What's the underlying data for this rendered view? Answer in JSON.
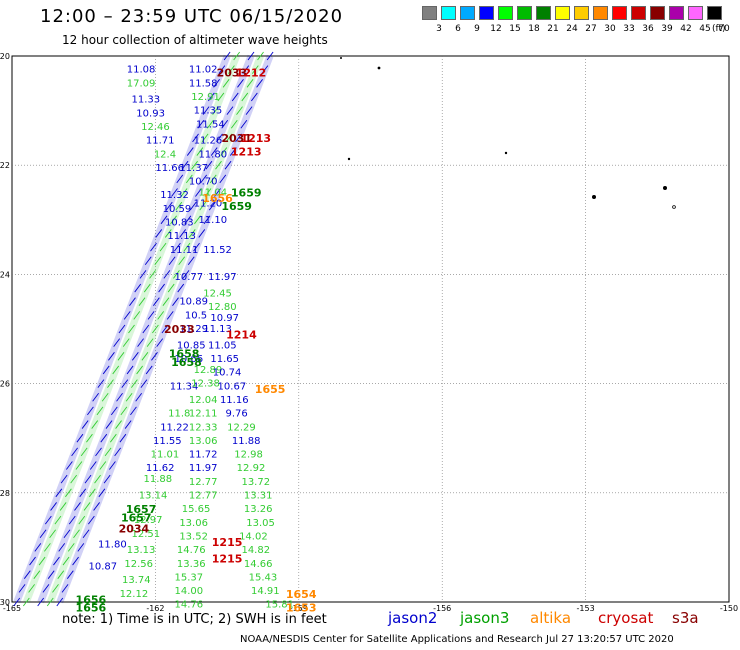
{
  "title": "12:00 – 23:59 UTC 06/15/2020",
  "subtitle": "12 hour collection of altimeter wave heights",
  "legend": {
    "unit": "(ft)",
    "bins": [
      {
        "label": "3",
        "color": "#808080"
      },
      {
        "label": "6",
        "color": "#00ffff"
      },
      {
        "label": "9",
        "color": "#00aaff"
      },
      {
        "label": "12",
        "color": "#0000ff"
      },
      {
        "label": "15",
        "color": "#00ff00"
      },
      {
        "label": "18",
        "color": "#00bb00"
      },
      {
        "label": "21",
        "color": "#008000"
      },
      {
        "label": "24",
        "color": "#ffff00"
      },
      {
        "label": "27",
        "color": "#ffcc00"
      },
      {
        "label": "30",
        "color": "#ff8800"
      },
      {
        "label": "33",
        "color": "#ff0000"
      },
      {
        "label": "36",
        "color": "#cc0000"
      },
      {
        "label": "39",
        "color": "#880000"
      },
      {
        "label": "42",
        "color": "#aa00aa"
      },
      {
        "label": "45",
        "color": "#ff66ff"
      },
      {
        "label": "70",
        "color": "#000000"
      }
    ]
  },
  "axes": {
    "lat_labels": [
      "-20",
      "-22",
      "-24",
      "-26",
      "-28",
      "-30"
    ],
    "lon_labels": [
      "-165",
      "-162",
      "-159",
      "-156",
      "-153",
      "-150"
    ]
  },
  "satellites": {
    "jason2": {
      "label": "jason2",
      "color": "#0000cc"
    },
    "jason3": {
      "label": "jason3",
      "color": "#00a000"
    },
    "altika": {
      "label": "altika",
      "color": "#ff8800"
    },
    "cryosat": {
      "label": "cryosat",
      "color": "#cc0000"
    },
    "s3a": {
      "label": "s3a",
      "color": "#880000"
    }
  },
  "note": "note:  1) Time is in UTC; 2) SWH is in feet",
  "credit": "NOAA/NESDIS Center for Satellite Applications and Research     Jul 27 13:20:57 UTC 2020",
  "observations": [
    {
      "lat": -20.25,
      "lon": -162.3,
      "v": "11.08",
      "c": "#0000cc"
    },
    {
      "lat": -20.5,
      "lon": -162.3,
      "v": "17.09",
      "c": "#33cc33"
    },
    {
      "lat": -20.8,
      "lon": -162.2,
      "v": "11.33",
      "c": "#0000cc"
    },
    {
      "lat": -21.05,
      "lon": -162.1,
      "v": "10.93",
      "c": "#0000cc"
    },
    {
      "lat": -21.3,
      "lon": -162.0,
      "v": "12.46",
      "c": "#33cc33"
    },
    {
      "lat": -21.55,
      "lon": -161.9,
      "v": "11.71",
      "c": "#0000cc"
    },
    {
      "lat": -21.8,
      "lon": -161.8,
      "v": "12.4",
      "c": "#33cc33"
    },
    {
      "lat": -22.05,
      "lon": -161.7,
      "v": "11.66",
      "c": "#0000cc"
    },
    {
      "lat": -22.55,
      "lon": -161.6,
      "v": "11.32",
      "c": "#0000cc"
    },
    {
      "lat": -22.8,
      "lon": -161.55,
      "v": "10.59",
      "c": "#0000cc"
    },
    {
      "lat": -23.05,
      "lon": -161.5,
      "v": "10.83",
      "c": "#0000cc"
    },
    {
      "lat": -23.3,
      "lon": -161.45,
      "v": "11.13",
      "c": "#0000cc"
    },
    {
      "lat": -23.55,
      "lon": -161.4,
      "v": "11.11",
      "c": "#0000cc"
    },
    {
      "lat": -24.05,
      "lon": -161.3,
      "v": "10.77",
      "c": "#0000cc"
    },
    {
      "lat": -24.5,
      "lon": -161.2,
      "v": "10.89",
      "c": "#0000cc"
    },
    {
      "lat": -24.75,
      "lon": -161.15,
      "v": "10.5",
      "c": "#0000cc"
    },
    {
      "lat": -25.0,
      "lon": -161.2,
      "v": "11.29",
      "c": "#0000cc"
    },
    {
      "lat": -25.3,
      "lon": -161.25,
      "v": "10.85",
      "c": "#0000cc"
    },
    {
      "lat": -25.55,
      "lon": -161.3,
      "v": "10.66",
      "c": "#0000cc"
    },
    {
      "lat": -26.05,
      "lon": -161.4,
      "v": "11.34",
      "c": "#0000cc"
    },
    {
      "lat": -26.55,
      "lon": -161.5,
      "v": "11.8",
      "c": "#33cc33"
    },
    {
      "lat": -26.8,
      "lon": -161.6,
      "v": "11.22",
      "c": "#0000cc"
    },
    {
      "lat": -27.05,
      "lon": -161.75,
      "v": "11.55",
      "c": "#0000cc"
    },
    {
      "lat": -27.3,
      "lon": -161.8,
      "v": "11.01",
      "c": "#33cc33"
    },
    {
      "lat": -27.55,
      "lon": -161.9,
      "v": "11.62",
      "c": "#0000cc"
    },
    {
      "lat": -27.75,
      "lon": -161.95,
      "v": "11.88",
      "c": "#33cc33"
    },
    {
      "lat": -28.05,
      "lon": -162.05,
      "v": "13.14",
      "c": "#33cc33"
    },
    {
      "lat": -28.5,
      "lon": -162.15,
      "v": "12.97",
      "c": "#33cc33"
    },
    {
      "lat": -28.75,
      "lon": -162.2,
      "v": "12.51",
      "c": "#33cc33"
    },
    {
      "lat": -28.95,
      "lon": -162.9,
      "v": "11.80",
      "c": "#0000cc"
    },
    {
      "lat": -29.05,
      "lon": -162.3,
      "v": "13.13",
      "c": "#33cc33"
    },
    {
      "lat": -29.3,
      "lon": -162.35,
      "v": "12.56",
      "c": "#33cc33"
    },
    {
      "lat": -29.35,
      "lon": -163.1,
      "v": "10.87",
      "c": "#0000cc"
    },
    {
      "lat": -29.6,
      "lon": -162.4,
      "v": "13.74",
      "c": "#33cc33"
    },
    {
      "lat": -29.85,
      "lon": -162.45,
      "v": "12.12",
      "c": "#33cc33"
    },
    {
      "lat": -20.25,
      "lon": -161.0,
      "v": "11.02",
      "c": "#0000cc"
    },
    {
      "lat": -20.5,
      "lon": -161.0,
      "v": "11.58",
      "c": "#0000cc"
    },
    {
      "lat": -20.75,
      "lon": -160.95,
      "v": "12.91",
      "c": "#33cc33"
    },
    {
      "lat": -21.0,
      "lon": -160.9,
      "v": "11.35",
      "c": "#0000cc"
    },
    {
      "lat": -21.25,
      "lon": -160.85,
      "v": "11.54",
      "c": "#0000cc"
    },
    {
      "lat": -21.55,
      "lon": -160.9,
      "v": "11.26",
      "c": "#0000cc"
    },
    {
      "lat": -21.8,
      "lon": -160.8,
      "v": "11.80",
      "c": "#0000cc"
    },
    {
      "lat": -22.05,
      "lon": -161.2,
      "v": "11.37",
      "c": "#0000cc"
    },
    {
      "lat": -22.3,
      "lon": -161.0,
      "v": "10.70",
      "c": "#0000cc"
    },
    {
      "lat": -22.5,
      "lon": -160.8,
      "v": "11.04",
      "c": "#33cc33"
    },
    {
      "lat": -22.7,
      "lon": -160.9,
      "v": "11.20",
      "c": "#0000cc"
    },
    {
      "lat": -23.0,
      "lon": -160.8,
      "v": "11.10",
      "c": "#0000cc"
    },
    {
      "lat": -23.55,
      "lon": -160.7,
      "v": "11.52",
      "c": "#0000cc"
    },
    {
      "lat": -24.05,
      "lon": -160.6,
      "v": "11.97",
      "c": "#0000cc"
    },
    {
      "lat": -24.35,
      "lon": -160.7,
      "v": "12.45",
      "c": "#33cc33"
    },
    {
      "lat": -24.6,
      "lon": -160.6,
      "v": "12.80",
      "c": "#33cc33"
    },
    {
      "lat": -24.8,
      "lon": -160.55,
      "v": "10.97",
      "c": "#0000cc"
    },
    {
      "lat": -25.0,
      "lon": -160.7,
      "v": "11.13",
      "c": "#0000cc"
    },
    {
      "lat": -25.3,
      "lon": -160.6,
      "v": "11.05",
      "c": "#0000cc"
    },
    {
      "lat": -25.55,
      "lon": -160.55,
      "v": "11.65",
      "c": "#0000cc"
    },
    {
      "lat": -25.75,
      "lon": -160.9,
      "v": "12.89",
      "c": "#33cc33"
    },
    {
      "lat": -25.8,
      "lon": -160.5,
      "v": "10.74",
      "c": "#0000cc"
    },
    {
      "lat": -26.0,
      "lon": -160.95,
      "v": "12.38",
      "c": "#33cc33"
    },
    {
      "lat": -26.05,
      "lon": -160.4,
      "v": "10.67",
      "c": "#0000cc"
    },
    {
      "lat": -26.3,
      "lon": -161.0,
      "v": "12.04",
      "c": "#33cc33"
    },
    {
      "lat": -26.3,
      "lon": -160.35,
      "v": "11.16",
      "c": "#0000cc"
    },
    {
      "lat": -26.55,
      "lon": -161.0,
      "v": "12.11",
      "c": "#33cc33"
    },
    {
      "lat": -26.55,
      "lon": -160.3,
      "v": "9.76",
      "c": "#0000cc"
    },
    {
      "lat": -26.8,
      "lon": -161.0,
      "v": "12.33",
      "c": "#33cc33"
    },
    {
      "lat": -26.8,
      "lon": -160.2,
      "v": "12.29",
      "c": "#33cc33"
    },
    {
      "lat": -27.05,
      "lon": -161.0,
      "v": "13.06",
      "c": "#33cc33"
    },
    {
      "lat": -27.05,
      "lon": -160.1,
      "v": "11.88",
      "c": "#0000cc"
    },
    {
      "lat": -27.3,
      "lon": -161.0,
      "v": "11.72",
      "c": "#0000cc"
    },
    {
      "lat": -27.3,
      "lon": -160.05,
      "v": "12.98",
      "c": "#33cc33"
    },
    {
      "lat": -27.55,
      "lon": -161.0,
      "v": "11.97",
      "c": "#0000cc"
    },
    {
      "lat": -27.55,
      "lon": -160.0,
      "v": "12.92",
      "c": "#33cc33"
    },
    {
      "lat": -27.8,
      "lon": -161.0,
      "v": "12.77",
      "c": "#33cc33"
    },
    {
      "lat": -27.8,
      "lon": -159.9,
      "v": "13.72",
      "c": "#33cc33"
    },
    {
      "lat": -28.05,
      "lon": -161.0,
      "v": "12.77",
      "c": "#33cc33"
    },
    {
      "lat": -28.05,
      "lon": -159.85,
      "v": "13.31",
      "c": "#33cc33"
    },
    {
      "lat": -28.3,
      "lon": -161.15,
      "v": "15.65",
      "c": "#33cc33"
    },
    {
      "lat": -28.3,
      "lon": -159.85,
      "v": "13.26",
      "c": "#33cc33"
    },
    {
      "lat": -28.55,
      "lon": -161.2,
      "v": "13.06",
      "c": "#33cc33"
    },
    {
      "lat": -28.55,
      "lon": -159.8,
      "v": "13.05",
      "c": "#33cc33"
    },
    {
      "lat": -28.8,
      "lon": -161.2,
      "v": "13.52",
      "c": "#33cc33"
    },
    {
      "lat": -28.8,
      "lon": -159.95,
      "v": "14.02",
      "c": "#33cc33"
    },
    {
      "lat": -29.05,
      "lon": -161.25,
      "v": "14.76",
      "c": "#33cc33"
    },
    {
      "lat": -29.05,
      "lon": -159.9,
      "v": "14.82",
      "c": "#33cc33"
    },
    {
      "lat": -29.3,
      "lon": -161.25,
      "v": "13.36",
      "c": "#33cc33"
    },
    {
      "lat": -29.3,
      "lon": -159.85,
      "v": "14.66",
      "c": "#33cc33"
    },
    {
      "lat": -29.55,
      "lon": -161.3,
      "v": "15.37",
      "c": "#33cc33"
    },
    {
      "lat": -29.55,
      "lon": -159.75,
      "v": "15.43",
      "c": "#33cc33"
    },
    {
      "lat": -29.8,
      "lon": -161.3,
      "v": "14.00",
      "c": "#33cc33"
    },
    {
      "lat": -29.8,
      "lon": -159.7,
      "v": "14.91",
      "c": "#33cc33"
    },
    {
      "lat": -30.05,
      "lon": -161.3,
      "v": "14.76",
      "c": "#33cc33"
    },
    {
      "lat": -30.05,
      "lon": -159.4,
      "v": "15.81",
      "c": "#33cc33"
    }
  ],
  "passes": [
    {
      "lat": -20.3,
      "lon": -160.4,
      "v": "2033",
      "c": "#880000"
    },
    {
      "lat": -20.3,
      "lon": -160.0,
      "v": "1212",
      "c": "#cc0000"
    },
    {
      "lat": -21.5,
      "lon": -160.3,
      "v": "2031",
      "c": "#880000"
    },
    {
      "lat": -21.5,
      "lon": -159.9,
      "v": "1213",
      "c": "#cc0000"
    },
    {
      "lat": -21.75,
      "lon": -160.1,
      "v": "1213",
      "c": "#cc0000"
    },
    {
      "lat": -22.6,
      "lon": -160.7,
      "v": "1656",
      "c": "#ff8800"
    },
    {
      "lat": -22.5,
      "lon": -160.1,
      "v": "1659",
      "c": "#008000"
    },
    {
      "lat": -22.75,
      "lon": -160.3,
      "v": "1659",
      "c": "#008000"
    },
    {
      "lat": -25.0,
      "lon": -161.5,
      "v": "2033",
      "c": "#880000"
    },
    {
      "lat": -25.1,
      "lon": -160.2,
      "v": "1214",
      "c": "#cc0000"
    },
    {
      "lat": -25.45,
      "lon": -161.4,
      "v": "1658",
      "c": "#008000"
    },
    {
      "lat": -25.6,
      "lon": -161.35,
      "v": "1658",
      "c": "#008000"
    },
    {
      "lat": -26.1,
      "lon": -159.6,
      "v": "1655",
      "c": "#ff8800"
    },
    {
      "lat": -28.3,
      "lon": -162.3,
      "v": "1657",
      "c": "#008000"
    },
    {
      "lat": -28.45,
      "lon": -162.4,
      "v": "1657",
      "c": "#008000"
    },
    {
      "lat": -28.65,
      "lon": -162.45,
      "v": "2034",
      "c": "#880000"
    },
    {
      "lat": -28.9,
      "lon": -160.5,
      "v": "1215",
      "c": "#cc0000"
    },
    {
      "lat": -29.2,
      "lon": -160.5,
      "v": "1215",
      "c": "#cc0000"
    },
    {
      "lat": -29.85,
      "lon": -158.95,
      "v": "1654",
      "c": "#ff8800"
    },
    {
      "lat": -30.1,
      "lon": -158.95,
      "v": "1653",
      "c": "#ff8800"
    },
    {
      "lat": -29.95,
      "lon": -163.35,
      "v": "1656",
      "c": "#008000"
    },
    {
      "lat": -30.1,
      "lon": -163.35,
      "v": "1656",
      "c": "#008000"
    }
  ]
}
